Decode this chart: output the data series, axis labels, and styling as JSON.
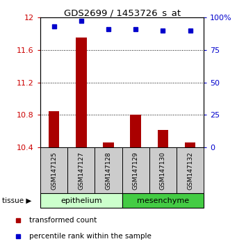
{
  "title": "GDS2699 / 1453726_s_at",
  "samples": [
    "GSM147125",
    "GSM147127",
    "GSM147128",
    "GSM147129",
    "GSM147130",
    "GSM147132"
  ],
  "transformed_counts": [
    10.85,
    11.75,
    10.46,
    10.8,
    10.62,
    10.46
  ],
  "percentile_ranks": [
    93,
    97,
    91,
    91,
    90,
    90
  ],
  "ylim_left": [
    10.4,
    12.0
  ],
  "ylim_right": [
    0,
    100
  ],
  "yticks_left": [
    10.4,
    10.8,
    11.2,
    11.6,
    12.0
  ],
  "ytick_labels_left": [
    "10.4",
    "10.8",
    "11.2",
    "11.6",
    "12"
  ],
  "yticks_right": [
    0,
    25,
    50,
    75,
    100
  ],
  "ytick_labels_right": [
    "0",
    "25",
    "50",
    "75",
    "100%"
  ],
  "bar_color": "#aa0000",
  "dot_color": "#0000cc",
  "tissue_groups": [
    {
      "label": "epithelium",
      "start": 0,
      "end": 3,
      "color": "#ccffcc"
    },
    {
      "label": "mesenchyme",
      "start": 3,
      "end": 6,
      "color": "#44cc44"
    }
  ],
  "left_axis_color": "#cc0000",
  "right_axis_color": "#0000cc",
  "legend_items": [
    {
      "label": "transformed count",
      "color": "#aa0000"
    },
    {
      "label": "percentile rank within the sample",
      "color": "#0000cc"
    }
  ],
  "tissue_label": "tissue",
  "background_color": "#ffffff",
  "sample_box_color": "#cccccc",
  "bar_width": 0.4
}
